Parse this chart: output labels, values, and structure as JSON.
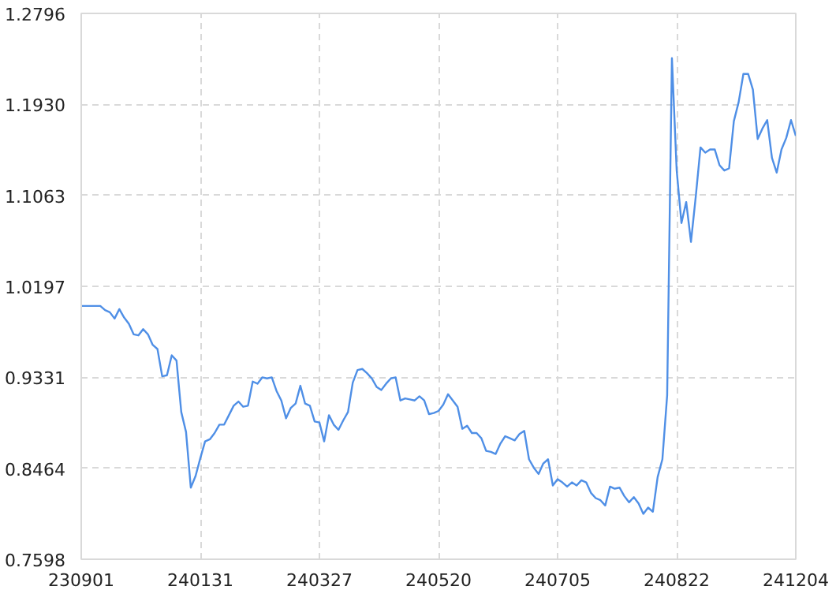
{
  "chart_data": {
    "type": "line",
    "categories": [
      "230901",
      null,
      null,
      null,
      null,
      null,
      null,
      null,
      null,
      null,
      null,
      null,
      null,
      null,
      null,
      null,
      null,
      null,
      null,
      null,
      null,
      null,
      null,
      null,
      null,
      "240131",
      null,
      null,
      null,
      null,
      null,
      null,
      null,
      null,
      null,
      null,
      null,
      null,
      null,
      null,
      null,
      null,
      null,
      null,
      null,
      null,
      null,
      null,
      null,
      null,
      "240327",
      null,
      null,
      null,
      null,
      null,
      null,
      null,
      null,
      null,
      null,
      null,
      null,
      null,
      null,
      null,
      null,
      null,
      null,
      null,
      null,
      null,
      null,
      null,
      null,
      "240520",
      null,
      null,
      null,
      null,
      null,
      null,
      null,
      null,
      null,
      null,
      null,
      null,
      null,
      null,
      null,
      null,
      null,
      null,
      null,
      null,
      null,
      null,
      null,
      null,
      "240705",
      null,
      null,
      null,
      null,
      null,
      null,
      null,
      null,
      null,
      null,
      null,
      null,
      null,
      null,
      null,
      null,
      null,
      null,
      null,
      null,
      null,
      null,
      null,
      null,
      "240822",
      null,
      null,
      null,
      null,
      null,
      null,
      null,
      null,
      null,
      null,
      null,
      null,
      null,
      null,
      null,
      null,
      null,
      null,
      null,
      null,
      null,
      null,
      null,
      null,
      "241204"
    ],
    "series": [
      {
        "color": "#4f8fe6",
        "values": [
          1.001,
          1.001,
          1.001,
          1.001,
          1.001,
          0.997,
          0.995,
          0.989,
          0.998,
          0.99,
          0.984,
          0.974,
          0.973,
          0.979,
          0.974,
          0.964,
          0.96,
          0.934,
          0.935,
          0.954,
          0.949,
          0.9,
          0.881,
          0.828,
          0.839,
          0.856,
          0.872,
          0.874,
          0.88,
          0.888,
          0.888,
          0.897,
          0.906,
          0.91,
          0.905,
          0.906,
          0.929,
          0.927,
          0.933,
          0.932,
          0.933,
          0.92,
          0.911,
          0.894,
          0.904,
          0.908,
          0.925,
          0.908,
          0.906,
          0.891,
          0.89,
          0.872,
          0.897,
          0.888,
          0.883,
          0.892,
          0.9,
          0.928,
          0.94,
          0.941,
          0.937,
          0.932,
          0.924,
          0.921,
          0.927,
          0.932,
          0.933,
          0.911,
          0.913,
          0.912,
          0.911,
          0.915,
          0.911,
          0.898,
          0.899,
          0.901,
          0.907,
          0.917,
          0.911,
          0.905,
          0.884,
          0.887,
          0.88,
          0.88,
          0.875,
          0.863,
          0.862,
          0.86,
          0.87,
          0.877,
          0.875,
          0.873,
          0.879,
          0.882,
          0.855,
          0.847,
          0.841,
          0.851,
          0.855,
          0.83,
          0.836,
          0.833,
          0.829,
          0.833,
          0.83,
          0.835,
          0.833,
          0.823,
          0.818,
          0.816,
          0.811,
          0.829,
          0.827,
          0.828,
          0.82,
          0.814,
          0.819,
          0.813,
          0.803,
          0.809,
          0.805,
          0.838,
          0.855,
          0.916,
          1.237,
          1.13,
          1.08,
          1.1,
          1.062,
          1.105,
          1.152,
          1.147,
          1.15,
          1.15,
          1.135,
          1.13,
          1.132,
          1.177,
          1.195,
          1.222,
          1.222,
          1.207,
          1.16,
          1.17,
          1.178,
          1.142,
          1.128,
          1.15,
          1.161,
          1.178,
          1.163
        ]
      }
    ],
    "ylim": [
      0.7598,
      1.2796
    ],
    "yticks": [
      0.7598,
      0.8464,
      0.9331,
      1.0197,
      1.1063,
      {
        "value": 1.193,
        "label": "1.1930"
      },
      1.2796
    ],
    "grid": true,
    "line_style": "solid"
  }
}
